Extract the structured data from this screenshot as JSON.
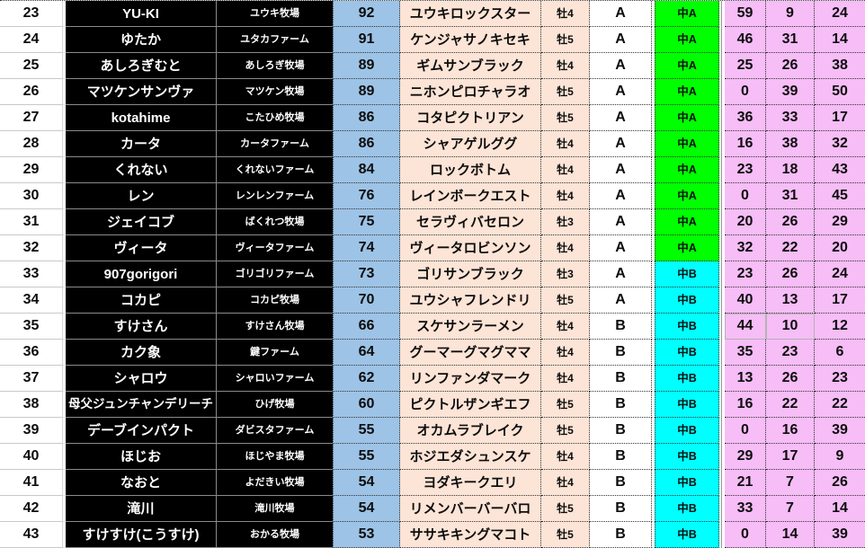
{
  "colors": {
    "score_bg": "#9DC3E6",
    "horse_bg": "#FCE4D6",
    "class_a_bg": "#00FF00",
    "class_b_bg": "#00FFFF",
    "stats_bg": "#F6BDF6",
    "name_bg": "#000000",
    "name_text": "#FFFFFF"
  },
  "table": {
    "rows": [
      {
        "no": "23",
        "player": "YU-KI",
        "farm": "ユウキ牧場",
        "score": "92",
        "horse": "ユウキロックスター",
        "sex": "牡4",
        "grade": "A",
        "cls": "中A",
        "class_bg": "#00FF00",
        "stats": [
          "59",
          "9",
          "24"
        ]
      },
      {
        "no": "24",
        "player": "ゆたか",
        "farm": "ユタカファーム",
        "score": "91",
        "horse": "ケンジャサノキセキ",
        "sex": "牡5",
        "grade": "A",
        "cls": "中A",
        "class_bg": "#00FF00",
        "stats": [
          "46",
          "31",
          "14"
        ]
      },
      {
        "no": "25",
        "player": "あしろぎむと",
        "farm": "あしろぎ牧場",
        "score": "89",
        "horse": "ギムサンブラック",
        "sex": "牡4",
        "grade": "A",
        "cls": "中A",
        "class_bg": "#00FF00",
        "stats": [
          "25",
          "26",
          "38"
        ]
      },
      {
        "no": "26",
        "player": "マツケンサンヴァ",
        "farm": "マツケン牧場",
        "score": "89",
        "horse": "ニホンピロチャラオ",
        "sex": "牡5",
        "grade": "A",
        "cls": "中A",
        "class_bg": "#00FF00",
        "stats": [
          "0",
          "39",
          "50"
        ]
      },
      {
        "no": "27",
        "player": "kotahime",
        "farm": "こたひめ牧場",
        "score": "86",
        "horse": "コタピクトリアン",
        "sex": "牡5",
        "grade": "A",
        "cls": "中A",
        "class_bg": "#00FF00",
        "stats": [
          "36",
          "33",
          "17"
        ]
      },
      {
        "no": "28",
        "player": "カータ",
        "farm": "カータファーム",
        "score": "86",
        "horse": "シャアゲルググ",
        "sex": "牡4",
        "grade": "A",
        "cls": "中A",
        "class_bg": "#00FF00",
        "stats": [
          "16",
          "38",
          "32"
        ]
      },
      {
        "no": "29",
        "player": "くれない",
        "farm": "くれないファーム",
        "score": "84",
        "horse": "ロックボトム",
        "sex": "牡4",
        "grade": "A",
        "cls": "中A",
        "class_bg": "#00FF00",
        "stats": [
          "23",
          "18",
          "43"
        ]
      },
      {
        "no": "30",
        "player": "レン",
        "farm": "レンレンファーム",
        "score": "76",
        "horse": "レインボークエスト",
        "sex": "牡4",
        "grade": "A",
        "cls": "中A",
        "class_bg": "#00FF00",
        "stats": [
          "0",
          "31",
          "45"
        ]
      },
      {
        "no": "31",
        "player": "ジェイコブ",
        "farm": "ばくれつ牧場",
        "score": "75",
        "horse": "セラヴィバセロン",
        "sex": "牡3",
        "grade": "A",
        "cls": "中A",
        "class_bg": "#00FF00",
        "stats": [
          "20",
          "26",
          "29"
        ]
      },
      {
        "no": "32",
        "player": "ヴィータ",
        "farm": "ヴィータファーム",
        "score": "74",
        "horse": "ヴィータロビンソン",
        "sex": "牡4",
        "grade": "A",
        "cls": "中A",
        "class_bg": "#00FF00",
        "stats": [
          "32",
          "22",
          "20"
        ]
      },
      {
        "no": "33",
        "player": "907gorigori",
        "farm": "ゴリゴリファーム",
        "score": "73",
        "horse": "ゴリサンブラック",
        "sex": "牡3",
        "grade": "A",
        "cls": "中B",
        "class_bg": "#00FFFF",
        "stats": [
          "23",
          "26",
          "24"
        ]
      },
      {
        "no": "34",
        "player": "コカピ",
        "farm": "コカピ牧場",
        "score": "70",
        "horse": "ユウシャフレンドリ",
        "sex": "牡5",
        "grade": "A",
        "cls": "中B",
        "class_bg": "#00FFFF",
        "stats": [
          "40",
          "13",
          "17"
        ]
      },
      {
        "no": "35",
        "player": "すけさん",
        "farm": "すけさん牧場",
        "score": "66",
        "horse": "スケサンラーメン",
        "sex": "牡4",
        "grade": "B",
        "cls": "中B",
        "class_bg": "#00FFFF",
        "stats": [
          "44",
          "10",
          "12"
        ],
        "stats_solid": true
      },
      {
        "no": "36",
        "player": "カク象",
        "farm": "鍵ファーム",
        "score": "64",
        "horse": "グーマーグマグママ",
        "sex": "牡4",
        "grade": "B",
        "cls": "中B",
        "class_bg": "#00FFFF",
        "stats": [
          "35",
          "23",
          "6"
        ]
      },
      {
        "no": "37",
        "player": "シャロウ",
        "farm": "シャロいファーム",
        "score": "62",
        "horse": "リンファンダマーク",
        "sex": "牡4",
        "grade": "B",
        "cls": "中B",
        "class_bg": "#00FFFF",
        "stats": [
          "13",
          "26",
          "23"
        ]
      },
      {
        "no": "38",
        "player": "母父ジュンチャンデリーチ",
        "farm": "ひげ牧場",
        "score": "60",
        "horse": "ピクトルザンギエフ",
        "sex": "牡5",
        "grade": "B",
        "cls": "中B",
        "class_bg": "#00FFFF",
        "stats": [
          "16",
          "22",
          "22"
        ]
      },
      {
        "no": "39",
        "player": "デーブインパクト",
        "farm": "ダビスタファーム",
        "score": "55",
        "horse": "オカムラブレイク",
        "sex": "牡5",
        "grade": "B",
        "cls": "中B",
        "class_bg": "#00FFFF",
        "stats": [
          "0",
          "16",
          "39"
        ]
      },
      {
        "no": "40",
        "player": "ほじお",
        "farm": "ほじやま牧場",
        "score": "55",
        "horse": "ホジエダシュンスケ",
        "sex": "牡4",
        "grade": "B",
        "cls": "中B",
        "class_bg": "#00FFFF",
        "stats": [
          "29",
          "17",
          "9"
        ]
      },
      {
        "no": "41",
        "player": "なおと",
        "farm": "よだきい牧場",
        "score": "54",
        "horse": "ヨダキークエリ",
        "sex": "牡4",
        "grade": "B",
        "cls": "中B",
        "class_bg": "#00FFFF",
        "stats": [
          "21",
          "7",
          "26"
        ]
      },
      {
        "no": "42",
        "player": "滝川",
        "farm": "滝川牧場",
        "score": "54",
        "horse": "リメンバーバーバロ",
        "sex": "牡5",
        "grade": "B",
        "cls": "中B",
        "class_bg": "#00FFFF",
        "stats": [
          "33",
          "7",
          "14"
        ]
      },
      {
        "no": "43",
        "player": "すけすけ(こうすけ)",
        "farm": "おかる牧場",
        "score": "53",
        "horse": "ササキキングマコト",
        "sex": "牡5",
        "grade": "B",
        "cls": "中B",
        "class_bg": "#00FFFF",
        "stats": [
          "0",
          "14",
          "39"
        ]
      }
    ]
  }
}
